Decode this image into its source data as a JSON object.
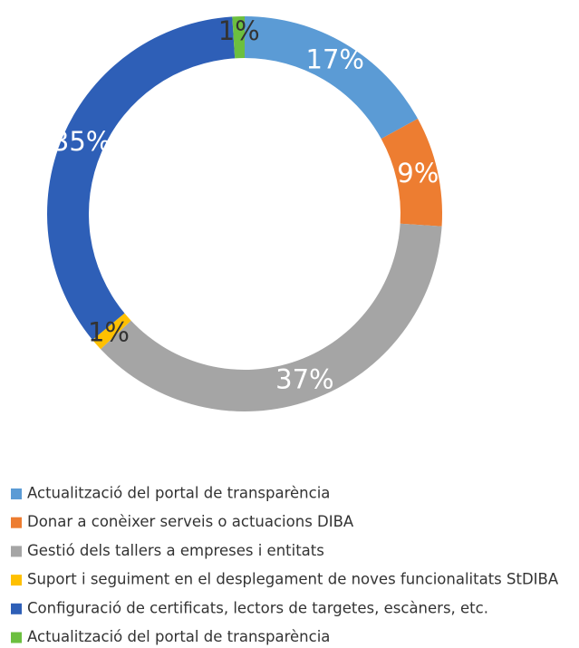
{
  "chart_data": {
    "type": "donut",
    "categories": [
      "Actualització del portal de transparència",
      "Donar a conèixer serveis o actuacions DIBA",
      "Gestió dels tallers a empreses i entitats",
      "Suport i seguiment en el desplegament de noves funcionalitats StDIBA",
      "Configuració de certificats, lectors de targetes, escàners, etc.",
      "Actualització del portal de transparència"
    ],
    "values": [
      17,
      9,
      37,
      1,
      35,
      1
    ],
    "value_labels": [
      "17%",
      "9%",
      "37%",
      "1%",
      "35%",
      "1%"
    ],
    "colors": [
      "#5b9bd5",
      "#ed7d31",
      "#a5a5a5",
      "#ffc000",
      "#2e5fb7",
      "#6cbf3f"
    ],
    "legend": "bottom"
  }
}
